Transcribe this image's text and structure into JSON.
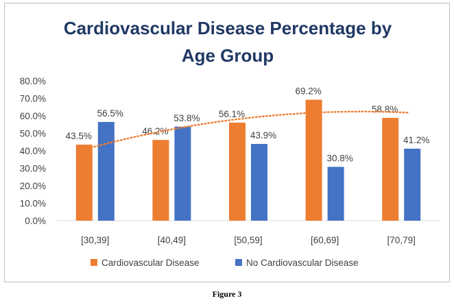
{
  "chart_data": {
    "type": "bar",
    "title_lines": [
      "Cardiovascular Disease Percentage by",
      "Age Group"
    ],
    "categories": [
      "[30,39]",
      "[40,49]",
      "[50,59]",
      "[60,69]",
      "[70,79]"
    ],
    "series": [
      {
        "name": "Cardiovascular Disease",
        "color": "#ED7D31",
        "values": [
          43.5,
          46.2,
          56.1,
          69.2,
          58.8
        ],
        "labels": [
          "43.5%",
          "46.2%",
          "56.1%",
          "69.2%",
          "58.8%"
        ]
      },
      {
        "name": "No Cardiovascular Disease",
        "color": "#4472C4",
        "values": [
          56.5,
          53.8,
          43.9,
          30.8,
          41.2
        ],
        "labels": [
          "56.5%",
          "53.8%",
          "43.9%",
          "30.8%",
          "41.2%"
        ]
      }
    ],
    "y_ticks": [
      "0.0%",
      "10.0%",
      "20.0%",
      "30.0%",
      "40.0%",
      "50.0%",
      "60.0%",
      "70.0%",
      "80.0%"
    ],
    "ylim": [
      0,
      80
    ],
    "trendline": {
      "series": "Cardiovascular Disease",
      "style": "dotted",
      "type": "polynomial"
    },
    "legend_position": "bottom",
    "grid": false
  },
  "caption": "Figure 3",
  "colors": {
    "title": "#203864",
    "text": "#404040",
    "axis": "#d9d9d9",
    "trend": "#ED7D31"
  }
}
